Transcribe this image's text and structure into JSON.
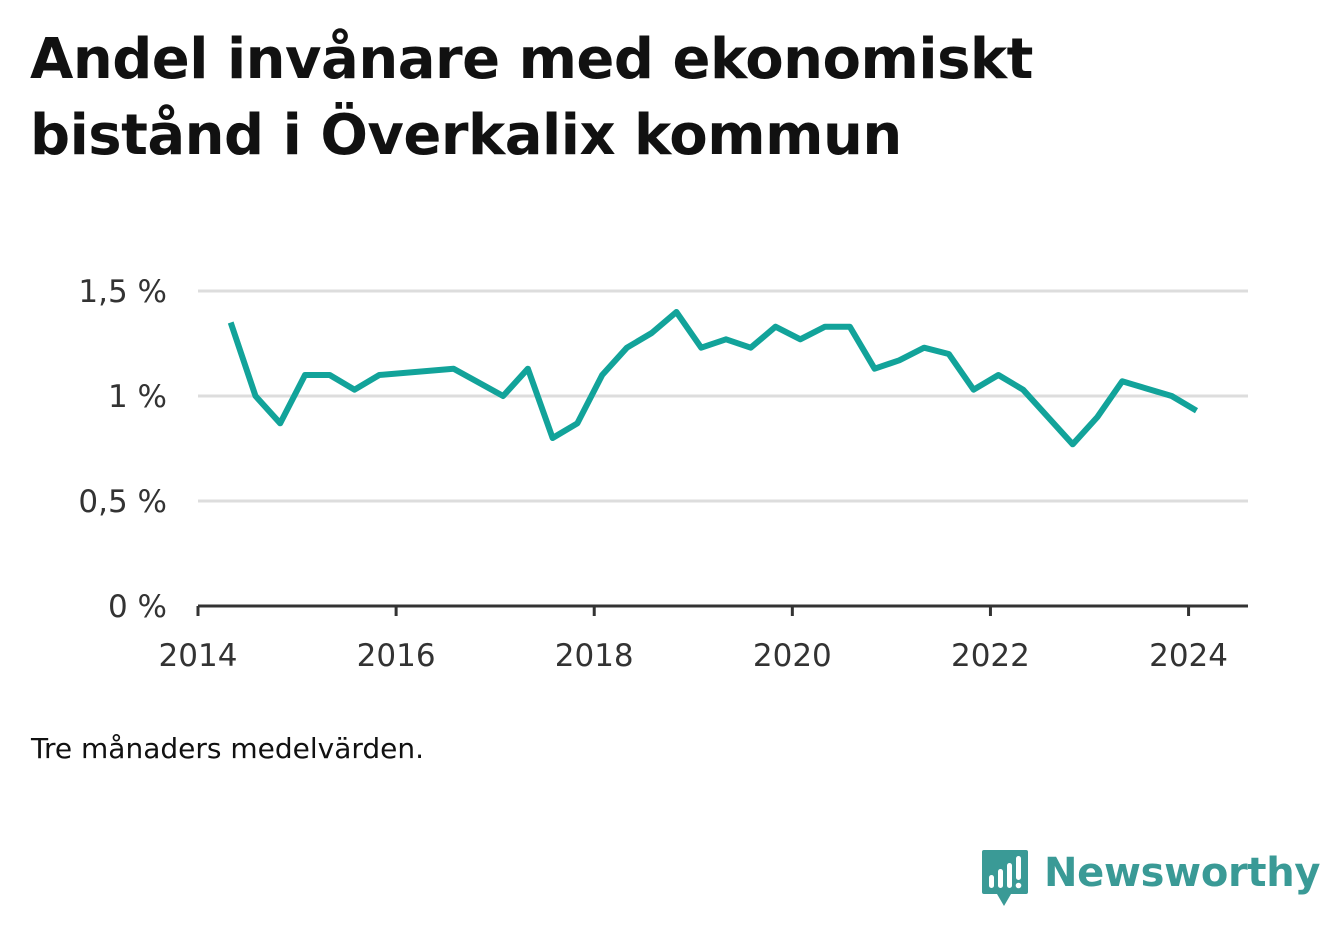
{
  "title": "Andel invånare med ekonomiskt bistånd i Överkalix kommun",
  "note": "Tre månaders medelvärden.",
  "brand": {
    "name": "Newsworthy",
    "icon": "newsworthy-logo-icon",
    "color": "#3a9a96"
  },
  "chart_data": {
    "type": "line",
    "title": "Andel invånare med ekonomiskt bistånd i Överkalix kommun",
    "xlabel": "",
    "ylabel": "",
    "ylim": [
      0,
      1.5
    ],
    "xlim": [
      2014,
      2024.6
    ],
    "grid": true,
    "line_color": "#12a39a",
    "y_ticks": [
      {
        "value": 0,
        "label": "0 %"
      },
      {
        "value": 0.5,
        "label": "0,5 %"
      },
      {
        "value": 1,
        "label": "1 %"
      },
      {
        "value": 1.5,
        "label": "1,5 %"
      }
    ],
    "x_ticks": [
      {
        "value": 2014,
        "label": "2014"
      },
      {
        "value": 2016,
        "label": "2016"
      },
      {
        "value": 2018,
        "label": "2018"
      },
      {
        "value": 2020,
        "label": "2020"
      },
      {
        "value": 2022,
        "label": "2022"
      },
      {
        "value": 2024,
        "label": "2024"
      }
    ],
    "series": [
      {
        "x": [
          2014.33,
          2014.58,
          2014.83,
          2015.08,
          2015.33,
          2015.58,
          2015.83,
          2016.58,
          2017.08,
          2017.33,
          2017.58,
          2017.83,
          2018.08,
          2018.33,
          2018.58,
          2018.83,
          2019.08,
          2019.33,
          2019.58,
          2019.83,
          2020.08,
          2020.33,
          2020.58,
          2020.83,
          2021.08,
          2021.33,
          2021.58,
          2021.83,
          2022.08,
          2022.33,
          2022.58,
          2022.83,
          2023.08,
          2023.33,
          2023.83,
          2024.08
        ],
        "y": [
          1.35,
          1.0,
          0.87,
          1.1,
          1.1,
          1.03,
          1.1,
          1.13,
          1.0,
          1.13,
          0.8,
          0.87,
          1.1,
          1.23,
          1.3,
          1.4,
          1.23,
          1.27,
          1.23,
          1.33,
          1.27,
          1.33,
          1.33,
          1.13,
          1.17,
          1.23,
          1.2,
          1.03,
          1.1,
          1.03,
          0.9,
          0.77,
          0.9,
          1.07,
          1.0,
          0.93
        ]
      }
    ]
  }
}
